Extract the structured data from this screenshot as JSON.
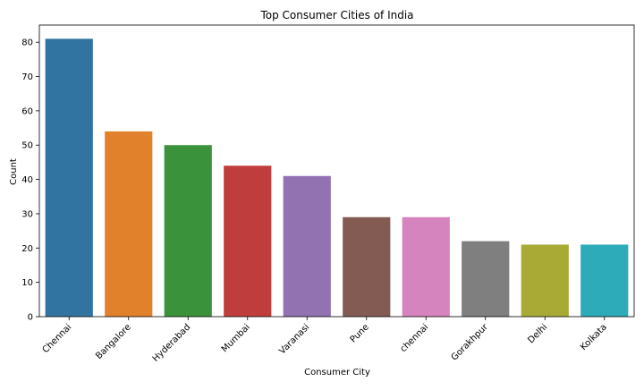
{
  "chart_data": {
    "type": "bar",
    "title": "Top Consumer Cities of India",
    "xlabel": "Consumer City",
    "ylabel": "Count",
    "categories": [
      "Chennai",
      "Bangalore",
      "Hyderabad",
      "Mumbai",
      "Varanasi",
      "Pune",
      "chennai",
      "Gorakhpur",
      "Delhi",
      "Kolkata"
    ],
    "values": [
      81,
      54,
      50,
      44,
      41,
      29,
      29,
      22,
      21,
      21
    ],
    "colors": [
      "#3274a1",
      "#e1812c",
      "#3a923a",
      "#c03d3e",
      "#9372b2",
      "#845b53",
      "#d684bd",
      "#7f7f7f",
      "#a9aa35",
      "#2eabb8"
    ],
    "ylim": [
      0,
      85
    ],
    "yticks": [
      0,
      10,
      20,
      30,
      40,
      50,
      60,
      70,
      80
    ],
    "grid": false,
    "legend": "none"
  }
}
